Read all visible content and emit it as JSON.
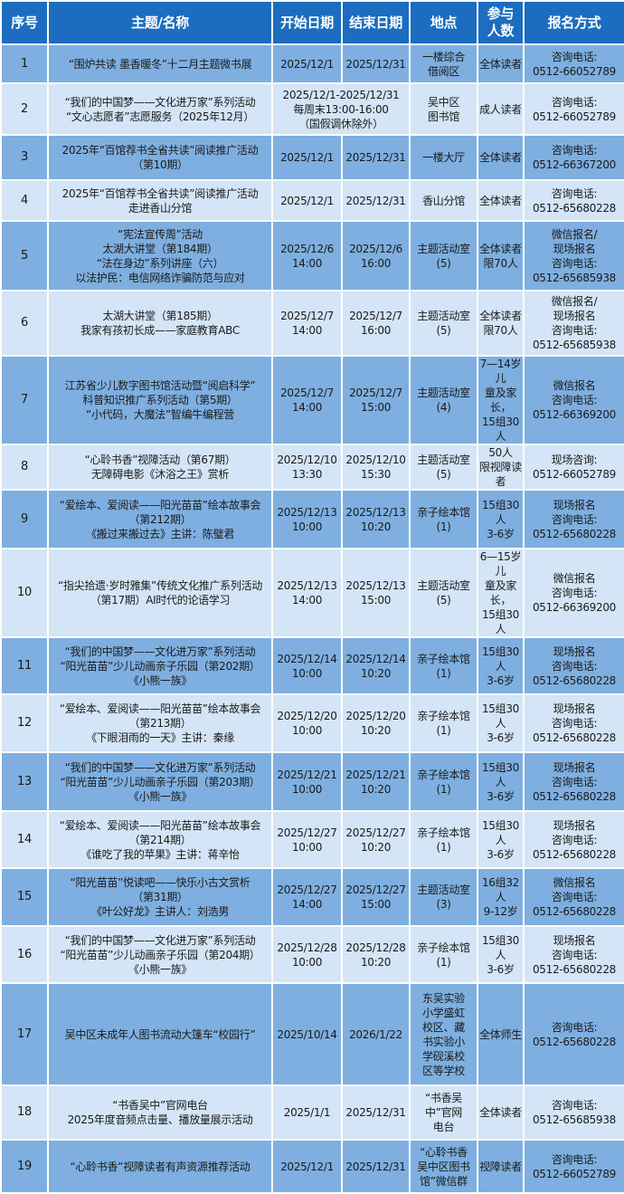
{
  "colors": {
    "header": "#1c6dbf",
    "row_dark": "#7eafe0",
    "row_light": "#d3e5f6",
    "border": "#ffffff"
  },
  "headers": [
    "序号",
    "主题/名称",
    "开始日期",
    "结束日期",
    "地点",
    "参与\n人数",
    "报名方式"
  ],
  "rows": [
    {
      "no": "1",
      "title": "“围炉共读 墨香暖冬”十二月主题微书展",
      "start": "2025/12/1",
      "end": "2025/12/31",
      "place": "一楼综合\n借阅区",
      "people": "全体读者",
      "signup": "咨询电话:\n0512-66052789"
    },
    {
      "no": "2",
      "title": "“我们的中国梦——文化进万家”系列活动\n“文心志愿者”志愿服务（2025年12月）",
      "date": "2025/12/1-2025/12/31\n每周末13:00-16:00\n（国假调休除外）",
      "place": "吴中区\n图书馆",
      "people": "成人读者",
      "signup": "咨询电话:\n0512-66052789"
    },
    {
      "no": "3",
      "title": "2025年“百馆荐书全省共读”阅读推广活动\n（第10期）",
      "start": "2025/12/1",
      "end": "2025/12/31",
      "place": "一楼大厅",
      "people": "全体读者",
      "signup": "咨询电话:\n0512-66367200"
    },
    {
      "no": "4",
      "title": "2025年“百馆荐书全省共读”阅读推广活动\n走进香山分馆",
      "start": "2025/12/1",
      "end": "2025/12/31",
      "place": "香山分馆",
      "people": "全体读者",
      "signup": "咨询电话:\n0512-65680228"
    },
    {
      "no": "5",
      "title": "“宪法宣传周”活动\n太湖大讲堂（第184期）\n“法在身边”系列讲座（六）\n以法护民：电信网络诈骗防范与应对",
      "start": "2025/12/6\n14:00",
      "end": "2025/12/6\n16:00",
      "place": "主题活动室\n(5)",
      "people": "全体读者\n限70人",
      "signup": "微信报名/\n现场报名\n咨询电话:\n0512-65685938"
    },
    {
      "no": "6",
      "title": "太湖大讲堂（第185期）\n我家有孩初长成——家庭教育ABC",
      "start": "2025/12/7\n14:00",
      "end": "2025/12/7\n16:00",
      "place": "主题活动室\n(5)",
      "people": "全体读者\n限70人",
      "signup": "微信报名/\n现场报名\n咨询电话:\n0512-65685938"
    },
    {
      "no": "7",
      "title": "江苏省少儿数字图书馆活动暨“阅启科学”\n科普知识推广系列活动（第5期）\n“小代码，大魔法”智编牛编程营",
      "start": "2025/12/7\n14:00",
      "end": "2025/12/7\n15:00",
      "place": "主题活动室\n(4)",
      "people": "7—14岁儿\n童及家长，\n15组30人",
      "signup": "微信报名\n咨询电话:\n0512-66369200"
    },
    {
      "no": "8",
      "title": "“心聆书香”视障活动（第67期）\n无障碍电影《沐浴之王》赏析",
      "start": "2025/12/10\n13:30",
      "end": "2025/12/10\n15:30",
      "place": "主题活动室\n(5)",
      "people": "50人\n限视障读者",
      "signup": "现场咨询:\n0512-66052789"
    },
    {
      "no": "9",
      "title": "“爱绘本、爱阅读——阳光苗苗”绘本故事会\n（第212期）\n《搬过来搬过去》主讲：陈璧君",
      "start": "2025/12/13\n10:00",
      "end": "2025/12/13\n10:20",
      "place": "亲子绘本馆\n(1)",
      "people": "15组30人\n3-6岁",
      "signup": "现场报名\n咨询电话:\n0512-65680228"
    },
    {
      "no": "10",
      "title": "“指尖拾遗·岁时雅集”传统文化推广系列活动\n（第17期）AI时代的论语学习",
      "start": "2025/12/13\n14:00",
      "end": "2025/12/13\n15:00",
      "place": "主题活动室\n(5)",
      "people": "6—15岁儿\n童及家长，\n15组30人",
      "signup": "微信报名\n咨询电话:\n0512-66369200"
    },
    {
      "no": "11",
      "title": "“我们的中国梦——文化进万家”系列活动\n“阳光苗苗”少儿动画亲子乐园（第202期）\n《小熊一族》",
      "start": "2025/12/14\n10:00",
      "end": "2025/12/14\n10:20",
      "place": "亲子绘本馆\n(1)",
      "people": "15组30人\n3-6岁",
      "signup": "现场报名\n咨询电话:\n0512-65680228"
    },
    {
      "no": "12",
      "title": "“爱绘本、爱阅读——阳光苗苗”绘本故事会\n（第213期）\n《下眼泪雨的一天》主讲：秦缘",
      "start": "2025/12/20\n10:00",
      "end": "2025/12/20\n10:20",
      "place": "亲子绘本馆\n(1)",
      "people": "15组30人\n3-6岁",
      "signup": "现场报名\n咨询电话:\n0512-65680228"
    },
    {
      "no": "13",
      "title": "“我们的中国梦——文化进万家”系列活动\n“阳光苗苗”少儿动画亲子乐园（第203期）\n《小熊一族》",
      "start": "2025/12/21\n10:00",
      "end": "2025/12/21\n10:20",
      "place": "亲子绘本馆\n(1)",
      "people": "15组30人\n3-6岁",
      "signup": "现场报名\n咨询电话:\n0512-65680228"
    },
    {
      "no": "14",
      "title": "“爱绘本、爱阅读——阳光苗苗”绘本故事会\n（第214期）\n《谁吃了我的苹果》主讲：蒋辛怡",
      "start": "2025/12/27\n10:00",
      "end": "2025/12/27\n10:20",
      "place": "亲子绘本馆\n(1)",
      "people": "15组30人\n3-6岁",
      "signup": "现场报名\n咨询电话:\n0512-65680228"
    },
    {
      "no": "15",
      "title": "“阳光苗苗”悦读吧——快乐小古文赏析\n（第31期）\n《叶公好龙》主讲人：刘浩男",
      "start": "2025/12/27\n14:00",
      "end": "2025/12/27\n15:00",
      "place": "主题活动室\n(3)",
      "people": "16组32人\n9-12岁",
      "signup": "微信报名\n咨询电话:\n0512-65680228"
    },
    {
      "no": "16",
      "title": "“我们的中国梦——文化进万家”系列活动\n“阳光苗苗”少儿动画亲子乐园（第204期）\n《小熊一族》",
      "start": "2025/12/28\n10:00",
      "end": "2025/12/28\n10:20",
      "place": "亲子绘本馆\n(1)",
      "people": "15组30人\n3-6岁",
      "signup": "现场报名\n咨询电话:\n0512-65680228"
    },
    {
      "no": "17",
      "title": "吴中区未成年人图书流动大篷车“校园行”",
      "start": "2025/10/14",
      "end": "2026/1/22",
      "place": "东吴实验\n小学盛虹\n校区、藏\n书实验小\n学砚溪校\n区等学校",
      "people": "全体师生",
      "signup": "咨询电话:\n0512-65680228"
    },
    {
      "no": "18",
      "title": "“书香吴中”官网电台\n2025年度音频点击量、播放量展示活动",
      "start": "2025/1/1",
      "end": "2025/12/31",
      "place": "“书香吴\n中”官网\n电台",
      "people": "全体读者",
      "signup": "咨询电话:\n0512-65685938"
    },
    {
      "no": "19",
      "title": "“心聆书香”视障读者有声资源推荐活动",
      "start": "2025/12/1",
      "end": "2025/12/31",
      "place": "“心聆书香\n吴中区图书\n馆”微信群",
      "people": "视障读者",
      "signup": "咨询电话:\n0512-66052789"
    }
  ]
}
